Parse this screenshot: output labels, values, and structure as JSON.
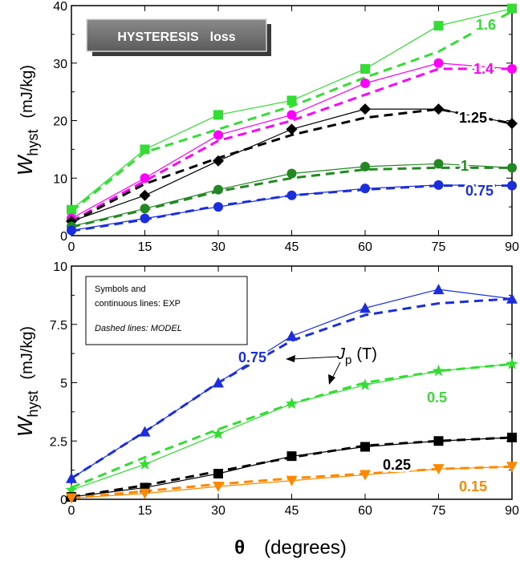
{
  "chart_data": [
    {
      "type": "line",
      "title_box": {
        "word1": "HYSTERESIS",
        "word2": "loss"
      },
      "ylabel": {
        "symbol": "W",
        "subscript": "hyst",
        "unit": "(mJ/kg)"
      },
      "x": [
        0,
        15,
        30,
        45,
        60,
        75,
        90
      ],
      "xticks": [
        "0",
        "15",
        "30",
        "45",
        "60",
        "75",
        "90"
      ],
      "yticks": [
        "0",
        "10",
        "20",
        "30",
        "40"
      ],
      "xlim": [
        0,
        90
      ],
      "ylim": [
        0,
        40
      ],
      "series": [
        {
          "name": "1.6",
          "color": "#33dd33",
          "marker": "square",
          "exp": [
            4.5,
            15,
            21,
            23.5,
            29,
            36.5,
            39.5
          ],
          "model": [
            4.2,
            14.5,
            18.5,
            22.5,
            27.5,
            32,
            39
          ]
        },
        {
          "name": "1.4",
          "color": "#ff00ff",
          "marker": "circle",
          "exp": [
            3,
            10,
            17.5,
            21,
            26.5,
            30,
            29
          ],
          "model": [
            2.5,
            9.5,
            16.5,
            20,
            24.5,
            29,
            29
          ]
        },
        {
          "name": "1.25",
          "color": "#000000",
          "marker": "diamond",
          "exp": [
            2.5,
            7,
            13,
            18.5,
            22,
            22,
            19.5
          ],
          "model": [
            2.3,
            9,
            13.5,
            17.5,
            20.5,
            22,
            19.5
          ]
        },
        {
          "name": "1",
          "color": "#228822",
          "marker": "circle",
          "exp": [
            1.6,
            4.7,
            8,
            10.8,
            12,
            12.5,
            11.8
          ],
          "model": [
            1.5,
            4.5,
            7.7,
            10,
            11.5,
            11.8,
            11.8
          ]
        },
        {
          "name": "0.75",
          "color": "#1a2ee0",
          "marker": "circle",
          "exp": [
            0.9,
            3,
            5,
            7,
            8.2,
            8.8,
            8.7
          ],
          "model": [
            0.8,
            2.8,
            5.2,
            7,
            8,
            8.7,
            8.7
          ]
        }
      ]
    },
    {
      "type": "line",
      "ylabel": {
        "symbol": "W",
        "subscript": "hyst",
        "unit": "(mJ/kg)"
      },
      "xlabel": {
        "symbol": "θ",
        "unit": "(degrees)"
      },
      "x": [
        0,
        15,
        30,
        45,
        60,
        75,
        90
      ],
      "xticks": [
        "0",
        "15",
        "30",
        "45",
        "60",
        "75",
        "90"
      ],
      "yticks": [
        "0",
        "2.5",
        "5",
        "7.5",
        "10"
      ],
      "xlim": [
        0,
        90
      ],
      "ylim": [
        0,
        10
      ],
      "legend_note": {
        "line1": "Symbols and",
        "line2": "continuous lines:  EXP",
        "line3": "Dashed  lines:  MODEL"
      },
      "annotation": {
        "symbol": "J",
        "subscript": "p",
        "unit": "(T)"
      },
      "series": [
        {
          "name": "0.75",
          "color": "#1a2ee0",
          "marker": "triangle-up",
          "exp": [
            0.9,
            2.9,
            5,
            7,
            8.2,
            9,
            8.6
          ],
          "model": [
            0.9,
            2.9,
            5.0,
            6.8,
            7.9,
            8.4,
            8.6
          ]
        },
        {
          "name": "0.5",
          "color": "#33dd33",
          "marker": "star",
          "exp": [
            0.4,
            1.5,
            2.8,
            4.1,
            4.9,
            5.5,
            5.8
          ],
          "model": [
            0.5,
            1.8,
            3.0,
            4.1,
            5.0,
            5.5,
            5.8
          ]
        },
        {
          "name": "0.25",
          "color": "#000000",
          "marker": "square",
          "exp": [
            0.1,
            0.5,
            1.1,
            1.85,
            2.25,
            2.5,
            2.65
          ],
          "model": [
            0.1,
            0.6,
            1.2,
            1.8,
            2.3,
            2.5,
            2.65
          ]
        },
        {
          "name": "0.15",
          "color": "#ff8800",
          "marker": "triangle-down",
          "exp": [
            0.05,
            0.25,
            0.55,
            0.8,
            1.05,
            1.3,
            1.4
          ],
          "model": [
            0.05,
            0.35,
            0.65,
            0.9,
            1.1,
            1.3,
            1.4
          ]
        }
      ]
    }
  ]
}
